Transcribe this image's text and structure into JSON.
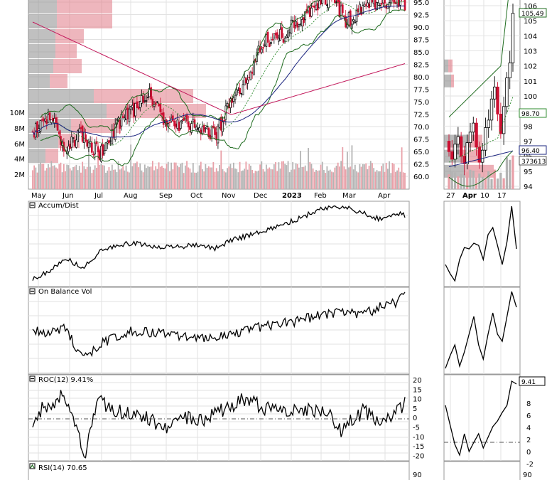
{
  "colors": {
    "up": "#000000",
    "down": "#cc1133",
    "vol_up": "#b4b4b4",
    "vol_down": "#e9a0a8",
    "vbp_up": "#8c8c8c",
    "vbp_down": "#e07a86",
    "sma50": "#1a237e",
    "sma200": "#c2185b",
    "bollinger": "#1e6b1e",
    "ema": "#2e8b2e",
    "line": "#000000",
    "frame": "#9a9a9a"
  },
  "main": {
    "price_ticks": [
      "95.0",
      "92.5",
      "90.0",
      "87.5",
      "85.0",
      "82.5",
      "80.0",
      "77.5",
      "75.0",
      "72.5",
      "70.0",
      "67.5",
      "65.0",
      "62.5",
      "60.0"
    ],
    "volume_ticks": [
      "10M",
      "8M",
      "6M",
      "4M",
      "2M"
    ],
    "months": [
      "May",
      "Jun",
      "Jul",
      "Aug",
      "Sep",
      "Oct",
      "Nov",
      "Dec",
      "2023",
      "Feb",
      "Mar",
      "Apr"
    ]
  },
  "zoom": {
    "price_ticks": [
      "106",
      "105",
      "104",
      "103",
      "102",
      "101",
      "100",
      "99",
      "98",
      "97",
      "96",
      "95",
      "94"
    ],
    "price_tags": [
      "105.49",
      "98.70",
      "96.40",
      "373613"
    ],
    "dates": [
      "27",
      "Apr",
      "10",
      "17"
    ]
  },
  "panels": {
    "accum_dist": {
      "label": "Accum/Dist"
    },
    "obv": {
      "label": "On Balance Vol"
    },
    "roc": {
      "label": "ROC(12) 9.41%",
      "ticks": [
        "20",
        "15",
        "10",
        "5",
        "0",
        "-5",
        "-10",
        "-15",
        "-20"
      ],
      "zoom_ticks": [
        "8",
        "6",
        "4",
        "2",
        "0",
        "-2"
      ],
      "zoom_tag": "9.41"
    },
    "rsi": {
      "label": "RSI(14) 70.65",
      "ticks": [
        "90"
      ],
      "zoom_ticks": [
        "90"
      ]
    }
  },
  "chart_data": {
    "type": "candlestick",
    "period": "May 2022 – Apr 2023, daily",
    "price_ticks": [
      95.0,
      92.5,
      90.0,
      87.5,
      85.0,
      82.5,
      80.0,
      77.5,
      75.0,
      72.5,
      70.0,
      67.5,
      65.0,
      62.5,
      60.0
    ],
    "close_path": {
      "x_month_index": [
        0,
        0.5,
        1,
        1.5,
        2,
        2.5,
        3,
        3.5,
        4,
        4.5,
        5,
        5.5,
        6,
        6.5,
        7,
        7.5,
        8,
        8.5,
        9,
        9.5,
        10,
        10.5,
        11,
        11.3
      ],
      "close": [
        68.5,
        72,
        66,
        68.5,
        64.5,
        70,
        73,
        77,
        71,
        70.5,
        70.5,
        68,
        75,
        80,
        87,
        88,
        91,
        94,
        96,
        91,
        94,
        95,
        95.5,
        94.5
      ]
    },
    "indicators": {
      "sma50_last": 96.4,
      "ema_last": 98.7,
      "bollinger_upper_last": 105.49,
      "volume_last": 373613,
      "roc12_last": 9.41,
      "rsi14_last": 70.65
    },
    "roc_ticks": [
      20,
      15,
      10,
      5,
      0,
      -5,
      -10,
      -15,
      -20
    ],
    "zoom_price_range": [
      94,
      106
    ]
  }
}
